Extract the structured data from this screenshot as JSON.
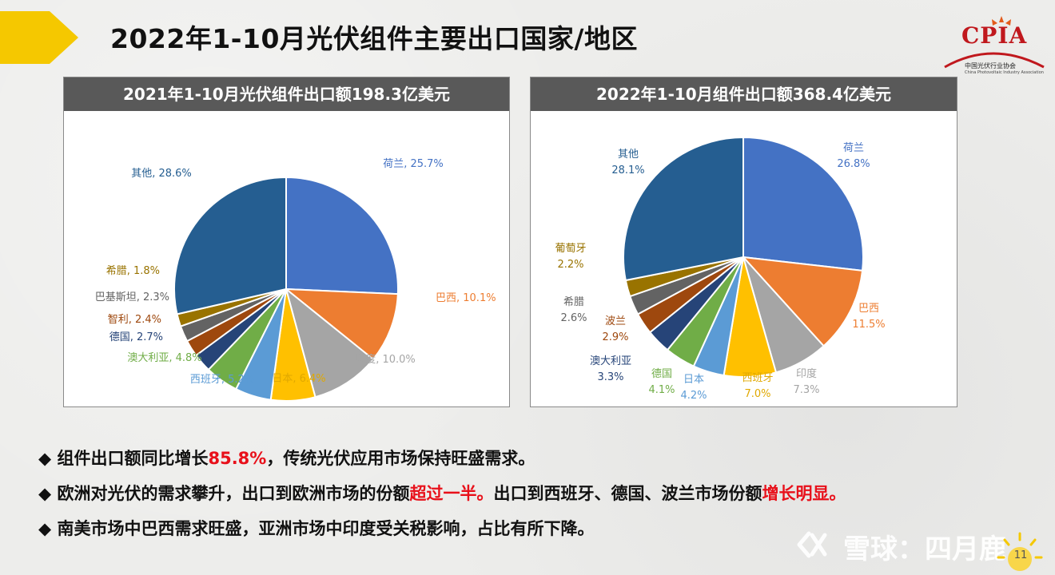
{
  "title": "2022年1-10月光伏组件主要出口国家/地区",
  "logo": {
    "main": "CPIA",
    "sub": "中国光伏行业协会",
    "sub_en": "China Photovoltaic Industry Association"
  },
  "colors": {
    "arrow": "#f5c800",
    "header_bg": "#595959",
    "highlight": "#e8101a"
  },
  "chart_data": [
    {
      "type": "pie",
      "title": "2021年1-10月光伏组件出口额198.3亿美元",
      "categories": [
        "荷兰",
        "巴西",
        "印度",
        "日本",
        "西班牙",
        "澳大利亚",
        "德国",
        "智利",
        "巴基斯坦",
        "希腊",
        "其他"
      ],
      "values": [
        25.7,
        10.1,
        10.0,
        6.4,
        5.2,
        4.8,
        2.7,
        2.4,
        2.3,
        1.8,
        28.6
      ],
      "value_labels": [
        "25.7%",
        "10.1%",
        "10.0%",
        "6.4%",
        "5.2%",
        "4.8%",
        "2.7%",
        "2.4%",
        "2.3%",
        "1.8%",
        "28.6%"
      ],
      "colors": [
        "#4472c4",
        "#ed7d31",
        "#a5a5a5",
        "#ffc000",
        "#5b9bd5",
        "#70ad47",
        "#264478",
        "#9e480e",
        "#636363",
        "#997300",
        "#255e91"
      ],
      "label_colors": [
        "#4472c4",
        "#ed7d31",
        "#a5a5a5",
        "#e0a800",
        "#5b9bd5",
        "#70ad47",
        "#264478",
        "#9e480e",
        "#636363",
        "#997300",
        "#255e91"
      ]
    },
    {
      "type": "pie",
      "title": "2022年1-10月组件出口额368.4亿美元",
      "categories": [
        "荷兰",
        "巴西",
        "印度",
        "西班牙",
        "日本",
        "德国",
        "澳大利亚",
        "波兰",
        "希腊",
        "葡萄牙",
        "其他"
      ],
      "values": [
        26.8,
        11.5,
        7.3,
        7.0,
        4.2,
        4.1,
        3.3,
        2.9,
        2.6,
        2.2,
        28.1
      ],
      "value_labels": [
        "26.8%",
        "11.5%",
        "7.3%",
        "7.0%",
        "4.2%",
        "4.1%",
        "3.3%",
        "2.9%",
        "2.6%",
        "2.2%",
        "28.1%"
      ],
      "colors": [
        "#4472c4",
        "#ed7d31",
        "#a5a5a5",
        "#ffc000",
        "#5b9bd5",
        "#70ad47",
        "#264478",
        "#9e480e",
        "#636363",
        "#997300",
        "#255e91"
      ],
      "label_colors": [
        "#4472c4",
        "#ed7d31",
        "#a5a5a5",
        "#e0a800",
        "#5b9bd5",
        "#70ad47",
        "#264478",
        "#9e480e",
        "#636363",
        "#997300",
        "#255e91"
      ]
    }
  ],
  "bullets": [
    {
      "marker": "◆",
      "parts": [
        {
          "text": "组件出口额同比增长",
          "hl": false
        },
        {
          "text": "85.8%",
          "hl": true
        },
        {
          "text": "，传统光伏应用市场保持旺盛需求。",
          "hl": false
        }
      ]
    },
    {
      "marker": "◆",
      "parts": [
        {
          "text": "欧洲对光伏的需求攀升，出口到欧洲市场的份额",
          "hl": false
        },
        {
          "text": "超过一半。",
          "hl": true
        },
        {
          "text": "出口到西班牙、德国、波兰市场份额",
          "hl": false
        },
        {
          "text": "增长明显。",
          "hl": true
        }
      ]
    },
    {
      "marker": "◆",
      "parts": [
        {
          "text": "南美市场中巴西需求旺盛，亚洲市场中印度受关税影响，占比有所下降。",
          "hl": false
        }
      ]
    }
  ],
  "watermark": "雪球：四月鹿",
  "page_number": "11"
}
